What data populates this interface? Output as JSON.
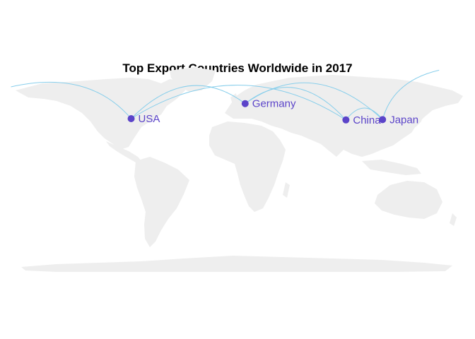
{
  "title": "Top Export Countries Worldwide in 2017",
  "colors": {
    "land": "#eeeeee",
    "route": "#87ceeb",
    "point": "#5b44c9",
    "label": "#5b44c9"
  },
  "countries": [
    {
      "name": "USA",
      "lon": -95.7,
      "lat": 37.1
    },
    {
      "name": "Germany",
      "lon": 10.4,
      "lat": 51.2
    },
    {
      "name": "China",
      "lon": 104.2,
      "lat": 35.9
    },
    {
      "name": "Japan",
      "lon": 138.3,
      "lat": 36.2
    }
  ]
}
